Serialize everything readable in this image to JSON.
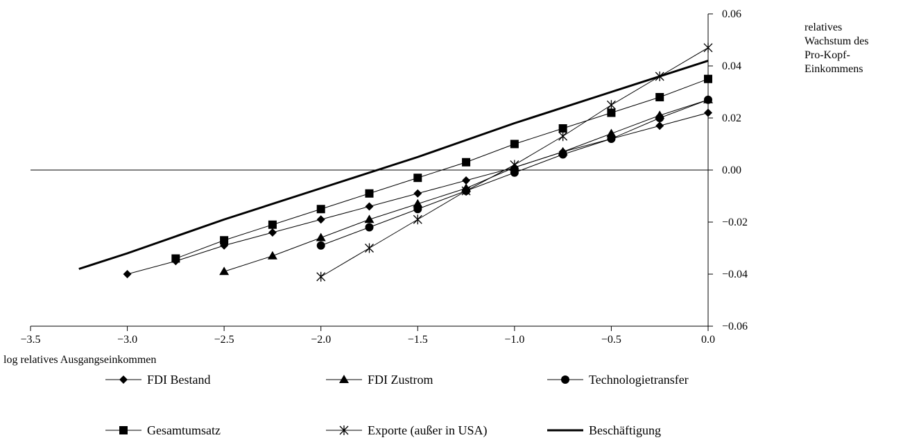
{
  "chart_data": {
    "type": "line",
    "title": "",
    "xlabel": "log relatives Ausgangseinkommen",
    "ylabel_lines": [
      "relatives",
      "Wachstum des",
      "Pro-Kopf-",
      "Einkommens"
    ],
    "xlim": [
      -3.5,
      0.0
    ],
    "ylim": [
      -0.06,
      0.06
    ],
    "x_ticks": [
      -3.5,
      -3.0,
      -2.5,
      -2.0,
      -1.5,
      -1.0,
      -0.5,
      0.0
    ],
    "x_tick_labels": [
      "−3.5",
      "−3.0",
      "−2.5",
      "−2.0",
      "−1.5",
      "−1.0",
      "−0.5",
      "0.0"
    ],
    "y_ticks": [
      0.06,
      0.04,
      0.02,
      0.0,
      -0.02,
      -0.04,
      -0.06
    ],
    "y_tick_labels": [
      "0.06",
      "0.04",
      "0.02",
      "0.00",
      "−0.02",
      "−0.04",
      "−0.06"
    ],
    "grid": false,
    "zero_line": true,
    "legend_position": "bottom",
    "series": [
      {
        "name": "FDI Bestand",
        "marker": "diamond",
        "line_width": 1,
        "x": [
          -3.0,
          -2.75,
          -2.5,
          -2.25,
          -2.0,
          -1.75,
          -1.5,
          -1.25,
          -1.0,
          -0.75,
          -0.5,
          -0.25,
          0.0
        ],
        "y": [
          -0.04,
          -0.035,
          -0.029,
          -0.024,
          -0.019,
          -0.014,
          -0.009,
          -0.004,
          0.001,
          0.007,
          0.012,
          0.017,
          0.022
        ]
      },
      {
        "name": "FDI Zustrom",
        "marker": "triangle",
        "line_width": 1,
        "x": [
          -2.5,
          -2.25,
          -2.0,
          -1.75,
          -1.5,
          -1.25,
          -1.0,
          -0.75,
          -0.5,
          -0.25,
          0.0
        ],
        "y": [
          -0.039,
          -0.033,
          -0.026,
          -0.019,
          -0.013,
          -0.007,
          0.001,
          0.007,
          0.014,
          0.021,
          0.027
        ]
      },
      {
        "name": "Technologietransfer",
        "marker": "circle",
        "line_width": 1,
        "x": [
          -2.0,
          -1.75,
          -1.5,
          -1.25,
          -1.0,
          -0.75,
          -0.5,
          -0.25,
          0.0
        ],
        "y": [
          -0.029,
          -0.022,
          -0.015,
          -0.008,
          -0.001,
          0.006,
          0.012,
          0.02,
          0.027
        ]
      },
      {
        "name": "Gesamtumsatz",
        "marker": "square",
        "line_width": 1,
        "x": [
          -2.75,
          -2.5,
          -2.25,
          -2.0,
          -1.75,
          -1.5,
          -1.25,
          -1.0,
          -0.75,
          -0.5,
          -0.25,
          0.0
        ],
        "y": [
          -0.034,
          -0.027,
          -0.021,
          -0.015,
          -0.009,
          -0.003,
          0.003,
          0.01,
          0.016,
          0.022,
          0.028,
          0.035
        ]
      },
      {
        "name": "Exporte (außer in USA)",
        "marker": "star",
        "line_width": 1,
        "x": [
          -2.0,
          -1.75,
          -1.5,
          -1.25,
          -1.0,
          -0.75,
          -0.5,
          -0.25,
          0.0
        ],
        "y": [
          -0.041,
          -0.03,
          -0.019,
          -0.008,
          0.002,
          0.013,
          0.025,
          0.036,
          0.047
        ]
      },
      {
        "name": "Beschäftigung",
        "marker": "none",
        "line_width": 3,
        "x": [
          -3.25,
          -3.0,
          -2.5,
          -2.0,
          -1.75,
          -1.5,
          -1.0,
          -0.5,
          0.0
        ],
        "y": [
          -0.038,
          -0.032,
          -0.019,
          -0.007,
          -0.001,
          0.005,
          0.018,
          0.03,
          0.042
        ]
      }
    ]
  }
}
